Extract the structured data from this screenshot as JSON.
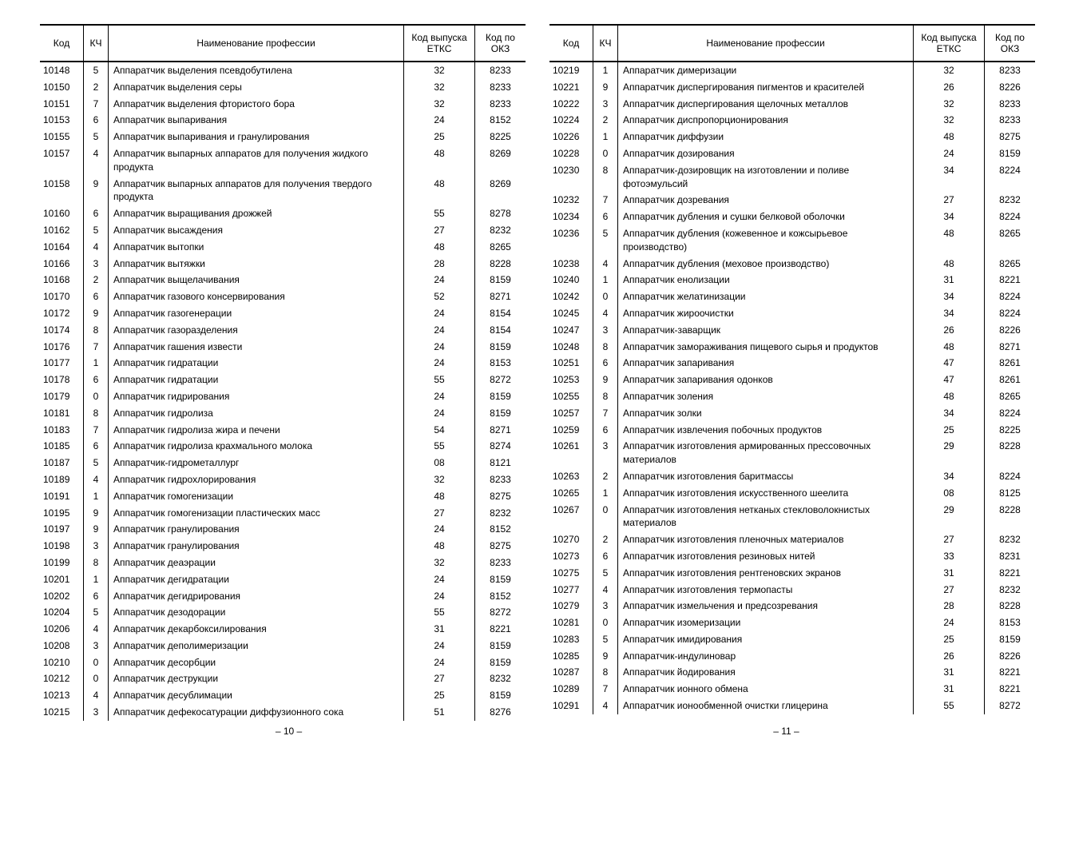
{
  "headers": {
    "kod": "Код",
    "kch": "КЧ",
    "name": "Наименование профессии",
    "etkc": "Код выпуска ЕТКС",
    "okz": "Код по ОКЗ"
  },
  "leftRows": [
    [
      "10148",
      "5",
      "Аппаратчик выделения псевдобутилена",
      "32",
      "8233"
    ],
    [
      "10150",
      "2",
      "Аппаратчик выделения серы",
      "32",
      "8233"
    ],
    [
      "10151",
      "7",
      "Аппаратчик выделения фтористого бора",
      "32",
      "8233"
    ],
    [
      "10153",
      "6",
      "Аппаратчик выпаривания",
      "24",
      "8152"
    ],
    [
      "10155",
      "5",
      "Аппаратчик выпаривания и гранулирования",
      "25",
      "8225"
    ],
    [
      "10157",
      "4",
      "Аппаратчик выпарных аппаратов для получения жидкого продукта",
      "48",
      "8269"
    ],
    [
      "10158",
      "9",
      "Аппаратчик выпарных аппаратов для получения твердого продукта",
      "48",
      "8269"
    ],
    [
      "10160",
      "6",
      "Аппаратчик выращивания дрожжей",
      "55",
      "8278"
    ],
    [
      "10162",
      "5",
      "Аппаратчик высаждения",
      "27",
      "8232"
    ],
    [
      "10164",
      "4",
      "Аппаратчик вытопки",
      "48",
      "8265"
    ],
    [
      "10166",
      "3",
      "Аппаратчик вытяжки",
      "28",
      "8228"
    ],
    [
      "10168",
      "2",
      "Аппаратчик выщелачивания",
      "24",
      "8159"
    ],
    [
      "10170",
      "6",
      "Аппаратчик газового консервирования",
      "52",
      "8271"
    ],
    [
      "10172",
      "9",
      "Аппаратчик газогенерации",
      "24",
      "8154"
    ],
    [
      "10174",
      "8",
      "Аппаратчик газоразделения",
      "24",
      "8154"
    ],
    [
      "10176",
      "7",
      "Аппаратчик гашения извести",
      "24",
      "8159"
    ],
    [
      "10177",
      "1",
      "Аппаратчик гидратации",
      "24",
      "8153"
    ],
    [
      "10178",
      "6",
      "Аппаратчик гидратации",
      "55",
      "8272"
    ],
    [
      "10179",
      "0",
      "Аппаратчик гидрирования",
      "24",
      "8159"
    ],
    [
      "10181",
      "8",
      "Аппаратчик гидролиза",
      "24",
      "8159"
    ],
    [
      "10183",
      "7",
      "Аппаратчик гидролиза жира и печени",
      "54",
      "8271"
    ],
    [
      "10185",
      "6",
      "Аппаратчик гидролиза крахмального молока",
      "55",
      "8274"
    ],
    [
      "10187",
      "5",
      "Аппаратчик-гидрометаллург",
      "08",
      "8121"
    ],
    [
      "10189",
      "4",
      "Аппаратчик гидрохлорирования",
      "32",
      "8233"
    ],
    [
      "10191",
      "1",
      "Аппаратчик гомогенизации",
      "48",
      "8275"
    ],
    [
      "10195",
      "9",
      "Аппаратчик гомогенизации пластических масс",
      "27",
      "8232"
    ],
    [
      "10197",
      "9",
      "Аппаратчик гранулирования",
      "24",
      "8152"
    ],
    [
      "10198",
      "3",
      "Аппаратчик гранулирования",
      "48",
      "8275"
    ],
    [
      "10199",
      "8",
      "Аппаратчик деаэрации",
      "32",
      "8233"
    ],
    [
      "10201",
      "1",
      "Аппаратчик дегидратации",
      "24",
      "8159"
    ],
    [
      "10202",
      "6",
      "Аппаратчик дегидрирования",
      "24",
      "8152"
    ],
    [
      "10204",
      "5",
      "Аппаратчик дезодорации",
      "55",
      "8272"
    ],
    [
      "10206",
      "4",
      "Аппаратчик декарбоксилирования",
      "31",
      "8221"
    ],
    [
      "10208",
      "3",
      "Аппаратчик деполимеризации",
      "24",
      "8159"
    ],
    [
      "10210",
      "0",
      "Аппаратчик десорбции",
      "24",
      "8159"
    ],
    [
      "10212",
      "0",
      "Аппаратчик деструкции",
      "27",
      "8232"
    ],
    [
      "10213",
      "4",
      "Аппаратчик десублимации",
      "25",
      "8159"
    ],
    [
      "10215",
      "3",
      "Аппаратчик дефекосатурации диффузионного сока",
      "51",
      "8276"
    ]
  ],
  "rightRows": [
    [
      "10219",
      "1",
      "Аппаратчик димеризации",
      "32",
      "8233"
    ],
    [
      "10221",
      "9",
      "Аппаратчик диспергирования пигментов и красителей",
      "26",
      "8226"
    ],
    [
      "10222",
      "3",
      "Аппаратчик диспергирования щелочных металлов",
      "32",
      "8233"
    ],
    [
      "10224",
      "2",
      "Аппаратчик диспропорционирования",
      "32",
      "8233"
    ],
    [
      "10226",
      "1",
      "Аппаратчик диффузии",
      "48",
      "8275"
    ],
    [
      "10228",
      "0",
      "Аппаратчик дозирования",
      "24",
      "8159"
    ],
    [
      "10230",
      "8",
      "Аппаратчик-дозировщик на изготовлении и поливе фотоэмульсий",
      "34",
      "8224"
    ],
    [
      "10232",
      "7",
      "Аппаратчик дозревания",
      "27",
      "8232"
    ],
    [
      "10234",
      "6",
      "Аппаратчик дубления и сушки белковой оболочки",
      "34",
      "8224"
    ],
    [
      "10236",
      "5",
      "Аппаратчик дубления (кожевенное и кожсырьевое производство)",
      "48",
      "8265"
    ],
    [
      "10238",
      "4",
      "Аппаратчик дубления (меховое производство)",
      "48",
      "8265"
    ],
    [
      "10240",
      "1",
      "Аппаратчик енолизации",
      "31",
      "8221"
    ],
    [
      "10242",
      "0",
      "Аппаратчик желатинизации",
      "34",
      "8224"
    ],
    [
      "10245",
      "4",
      "Аппаратчик жироочистки",
      "34",
      "8224"
    ],
    [
      "10247",
      "3",
      "Аппаратчик-заварщик",
      "26",
      "8226"
    ],
    [
      "10248",
      "8",
      "Аппаратчик замораживания пищевого сырья и продуктов",
      "48",
      "8271"
    ],
    [
      "10251",
      "6",
      "Аппаратчик запаривания",
      "47",
      "8261"
    ],
    [
      "10253",
      "9",
      "Аппаратчик запаривания одонков",
      "47",
      "8261"
    ],
    [
      "10255",
      "8",
      "Аппаратчик золения",
      "48",
      "8265"
    ],
    [
      "10257",
      "7",
      "Аппаратчик золки",
      "34",
      "8224"
    ],
    [
      "10259",
      "6",
      "Аппаратчик извлечения побочных продуктов",
      "25",
      "8225"
    ],
    [
      "10261",
      "3",
      "Аппаратчик изготовления армированных прессовочных материалов",
      "29",
      "8228"
    ],
    [
      "10263",
      "2",
      "Аппаратчик изготовления баритмассы",
      "34",
      "8224"
    ],
    [
      "10265",
      "1",
      "Аппаратчик изготовления искусственного шеелита",
      "08",
      "8125"
    ],
    [
      "10267",
      "0",
      "Аппаратчик изготовления нетканых стекловолокнистых материалов",
      "29",
      "8228"
    ],
    [
      "10270",
      "2",
      "Аппаратчик изготовления пленочных материалов",
      "27",
      "8232"
    ],
    [
      "10273",
      "6",
      "Аппаратчик изготовления резиновых нитей",
      "33",
      "8231"
    ],
    [
      "10275",
      "5",
      "Аппаратчик изготовления рентгеновских экранов",
      "31",
      "8221"
    ],
    [
      "10277",
      "4",
      "Аппаратчик изготовления термопасты",
      "27",
      "8232"
    ],
    [
      "10279",
      "3",
      "Аппаратчик измельчения и предсозревания",
      "28",
      "8228"
    ],
    [
      "10281",
      "0",
      "Аппаратчик изомеризации",
      "24",
      "8153"
    ],
    [
      "10283",
      "5",
      "Аппаратчик имидирования",
      "25",
      "8159"
    ],
    [
      "10285",
      "9",
      "Аппаратчик-индулиновар",
      "26",
      "8226"
    ],
    [
      "10287",
      "8",
      "Аппаратчик йодирования",
      "31",
      "8221"
    ],
    [
      "10289",
      "7",
      "Аппаратчик ионного обмена",
      "31",
      "8221"
    ],
    [
      "10291",
      "4",
      "Аппаратчик ионообменной очистки глицерина",
      "55",
      "8272"
    ]
  ],
  "pageLeft": "– 10 –",
  "pageRight": "– 11 –"
}
